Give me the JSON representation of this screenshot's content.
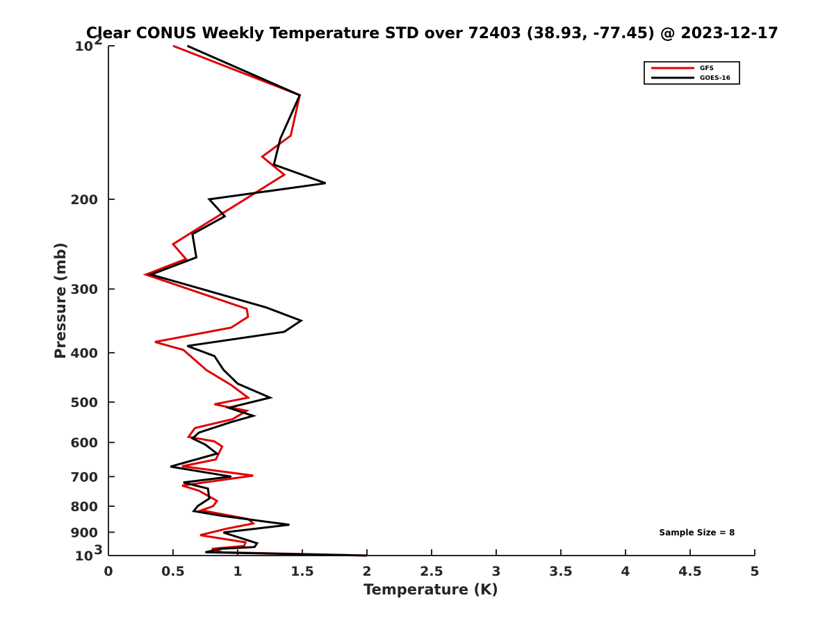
{
  "chart_data": {
    "type": "line",
    "title": "Clear CONUS Weekly Temperature STD over 72403 (38.93, -77.45) @ 2023-12-17",
    "xlabel": "Temperature (K)",
    "ylabel": "Pressure (mb)",
    "xlim": [
      0,
      5
    ],
    "ylim": [
      100,
      1000
    ],
    "yscale": "log",
    "y_reversed": true,
    "xticks": [
      0,
      0.5,
      1,
      1.5,
      2,
      2.5,
      3,
      3.5,
      4,
      4.5,
      5
    ],
    "xtick_labels": [
      "0",
      "0.5",
      "1",
      "1.5",
      "2",
      "2.5",
      "3",
      "3.5",
      "4",
      "4.5",
      "5"
    ],
    "yticks": [
      {
        "value": 100,
        "label": "10",
        "sup": "2"
      },
      {
        "value": 200,
        "label": "200",
        "sup": ""
      },
      {
        "value": 300,
        "label": "300",
        "sup": ""
      },
      {
        "value": 400,
        "label": "400",
        "sup": ""
      },
      {
        "value": 500,
        "label": "500",
        "sup": ""
      },
      {
        "value": 600,
        "label": "600",
        "sup": ""
      },
      {
        "value": 700,
        "label": "700",
        "sup": ""
      },
      {
        "value": 800,
        "label": "800",
        "sup": ""
      },
      {
        "value": 900,
        "label": "900",
        "sup": ""
      },
      {
        "value": 1000,
        "label": "10",
        "sup": "3"
      }
    ],
    "grid": false,
    "legend_position": "top-right",
    "annotation": "Sample Size = 8",
    "series": [
      {
        "name": "GFS",
        "color": "#e00000",
        "points": [
          [
            0.5,
            100
          ],
          [
            1.48,
            125
          ],
          [
            1.41,
            150
          ],
          [
            1.19,
            165
          ],
          [
            1.36,
            179
          ],
          [
            0.99,
            205
          ],
          [
            0.72,
            226
          ],
          [
            0.5,
            245
          ],
          [
            0.6,
            262
          ],
          [
            0.29,
            281
          ],
          [
            1.07,
            328
          ],
          [
            1.08,
            340
          ],
          [
            0.95,
            357
          ],
          [
            0.36,
            381
          ],
          [
            0.58,
            395
          ],
          [
            0.76,
            433
          ],
          [
            0.95,
            463
          ],
          [
            1.08,
            490
          ],
          [
            0.82,
            505
          ],
          [
            1.07,
            520
          ],
          [
            0.96,
            540
          ],
          [
            0.67,
            562
          ],
          [
            0.62,
            585
          ],
          [
            0.82,
            597
          ],
          [
            0.88,
            611
          ],
          [
            0.83,
            648
          ],
          [
            0.57,
            668
          ],
          [
            1.12,
            697
          ],
          [
            0.57,
            729
          ],
          [
            0.7,
            746
          ],
          [
            0.84,
            781
          ],
          [
            0.81,
            800
          ],
          [
            0.72,
            815
          ],
          [
            1.08,
            848
          ],
          [
            1.12,
            865
          ],
          [
            0.92,
            885
          ],
          [
            0.71,
            912
          ],
          [
            1.06,
            942
          ],
          [
            1.05,
            958
          ],
          [
            0.8,
            970
          ],
          [
            0.88,
            985
          ],
          [
            2.0,
            1000
          ]
        ]
      },
      {
        "name": "GOES-16",
        "color": "#000000",
        "points": [
          [
            0.61,
            100
          ],
          [
            1.48,
            125
          ],
          [
            1.33,
            152
          ],
          [
            1.28,
            171
          ],
          [
            1.68,
            186
          ],
          [
            0.78,
            200
          ],
          [
            0.9,
            216
          ],
          [
            0.65,
            234
          ],
          [
            0.68,
            260
          ],
          [
            0.33,
            281
          ],
          [
            1.22,
            326
          ],
          [
            1.49,
            346
          ],
          [
            1.36,
            364
          ],
          [
            0.61,
            388
          ],
          [
            0.82,
            406
          ],
          [
            0.89,
            432
          ],
          [
            1.0,
            460
          ],
          [
            1.25,
            490
          ],
          [
            0.93,
            513
          ],
          [
            1.12,
            532
          ],
          [
            0.94,
            548
          ],
          [
            0.7,
            574
          ],
          [
            0.65,
            589
          ],
          [
            0.75,
            606
          ],
          [
            0.84,
            631
          ],
          [
            0.48,
            669
          ],
          [
            0.95,
            700
          ],
          [
            0.58,
            719
          ],
          [
            0.77,
            739
          ],
          [
            0.78,
            773
          ],
          [
            0.69,
            800
          ],
          [
            0.66,
            818
          ],
          [
            0.88,
            836
          ],
          [
            1.4,
            870
          ],
          [
            0.89,
            901
          ],
          [
            1.15,
            946
          ],
          [
            1.13,
            962
          ],
          [
            0.87,
            970
          ],
          [
            0.75,
            985
          ],
          [
            2.0,
            1000
          ]
        ]
      }
    ]
  }
}
